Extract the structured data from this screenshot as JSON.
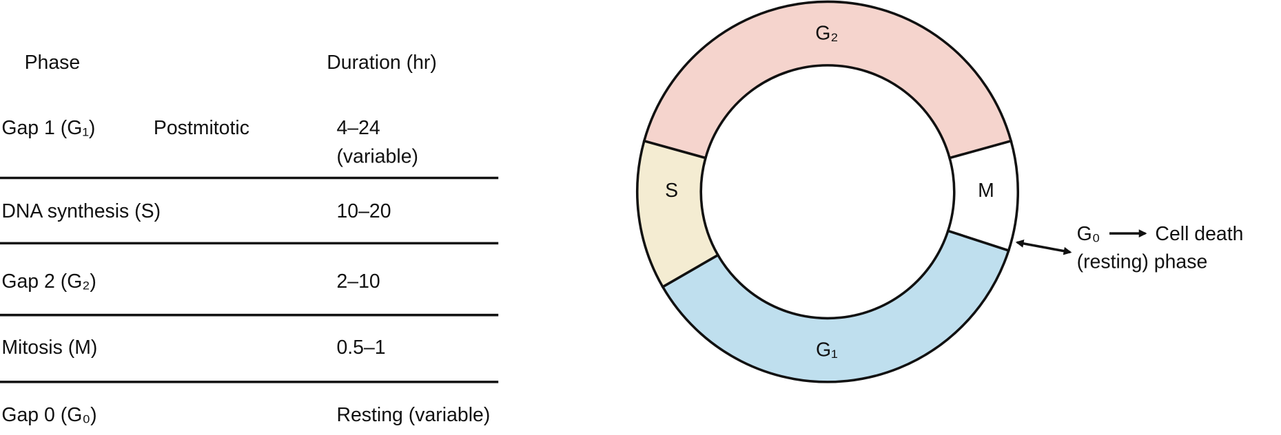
{
  "table": {
    "header": {
      "phase": "Phase",
      "duration": "Duration (hr)"
    },
    "rows": [
      {
        "phase": "Gap 1 (G₁)",
        "note": "Postmitotic",
        "duration": [
          "4–24",
          "(variable)"
        ]
      },
      {
        "phase": "DNA synthesis (S)",
        "duration": [
          "10–20"
        ]
      },
      {
        "phase": "Gap 2 (G₂)",
        "duration": [
          "2–10"
        ]
      },
      {
        "phase": "Mitosis (M)",
        "duration": [
          "0.5–1"
        ]
      },
      {
        "phase": "Gap 0 (G₀)",
        "duration": [
          "Resting (variable)"
        ]
      }
    ]
  },
  "diagram": {
    "phases": [
      {
        "label": "G₂"
      },
      {
        "label": "M"
      },
      {
        "label": "G₁"
      },
      {
        "label": "S"
      }
    ],
    "g0": "G₀",
    "cell_death": "Cell death",
    "resting": "(resting) phase"
  }
}
